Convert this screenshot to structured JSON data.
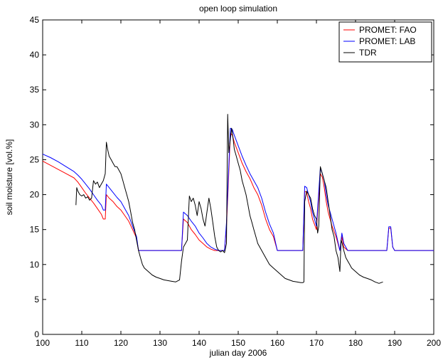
{
  "chart_data": {
    "type": "line",
    "title": "open loop simulation",
    "xlabel": "julian day 2006",
    "ylabel": "soil moisture [vol.%]",
    "xlim": [
      100,
      200
    ],
    "ylim": [
      0,
      45
    ],
    "xticks": [
      100,
      110,
      120,
      130,
      140,
      150,
      160,
      170,
      180,
      190,
      200
    ],
    "yticks": [
      0,
      5,
      10,
      15,
      20,
      25,
      30,
      35,
      40,
      45
    ],
    "grid": false,
    "legend_position": "top-right",
    "series": [
      {
        "name": "PROMET: FAO",
        "color": "#ff0000",
        "x": [
          100,
          102,
          104,
          106,
          108,
          109,
          110,
          111,
          112,
          113,
          114,
          115,
          115.5,
          116,
          116.3,
          117,
          118,
          119,
          120,
          121,
          122,
          123,
          124,
          124.5,
          125,
          130,
          135.5,
          136,
          137,
          138,
          139,
          140,
          141,
          142,
          143,
          144,
          145,
          146,
          146.5,
          147,
          147.5,
          148,
          148.5,
          149,
          150,
          151,
          152,
          153,
          154,
          155,
          156,
          157,
          158,
          159,
          160,
          161,
          166.5,
          167,
          167.5,
          168,
          168.5,
          169,
          170,
          171,
          171.5,
          172,
          172.5,
          173,
          174,
          175,
          176,
          176.5,
          177,
          178,
          179,
          180,
          185,
          188,
          188.5,
          189,
          189.5,
          190,
          195,
          200
        ],
        "y": [
          24.8,
          24.2,
          23.6,
          23.0,
          22.4,
          21.8,
          21.0,
          20.2,
          19.5,
          18.8,
          18.0,
          17.2,
          16.5,
          16.5,
          20.0,
          19.5,
          19.0,
          18.3,
          17.8,
          17.0,
          16.2,
          15.0,
          13.8,
          12.0,
          12.0,
          12.0,
          12.0,
          16.5,
          16.0,
          15.0,
          14.3,
          13.5,
          13.0,
          12.5,
          12.2,
          12.0,
          12.0,
          12.0,
          12.0,
          15.5,
          22.0,
          28.8,
          28.5,
          27.5,
          26.0,
          24.5,
          23.3,
          22.3,
          21.0,
          20.0,
          18.5,
          16.5,
          15.0,
          14.0,
          12.0,
          12.0,
          12.0,
          20.5,
          20.3,
          19.0,
          18.0,
          16.5,
          15.0,
          23.0,
          22.5,
          21.0,
          19.0,
          17.5,
          15.5,
          14.0,
          12.0,
          14.0,
          12.5,
          12.0,
          12.0,
          12.0,
          12.0,
          12.0,
          15.2,
          15.2,
          12.5,
          12.0,
          12.0,
          12.0
        ]
      },
      {
        "name": "PROMET: LAB",
        "color": "#0000ff",
        "x": [
          100,
          102,
          104,
          106,
          108,
          109,
          110,
          111,
          112,
          113,
          114,
          115,
          115.5,
          116,
          116.3,
          117,
          118,
          119,
          120,
          121,
          122,
          123,
          124,
          124.5,
          125,
          130,
          135.5,
          136,
          137,
          138,
          139,
          140,
          141,
          142,
          143,
          144,
          145,
          146,
          146.5,
          147,
          147.5,
          148,
          148.5,
          149,
          150,
          151,
          152,
          153,
          154,
          155,
          156,
          157,
          158,
          159,
          160,
          161,
          166.5,
          167,
          167.5,
          168,
          168.5,
          169,
          170,
          171,
          171.5,
          172,
          172.5,
          173,
          174,
          175,
          176,
          176.5,
          177,
          178,
          179,
          180,
          185,
          188,
          188.5,
          189,
          189.5,
          190,
          195,
          200
        ],
        "y": [
          25.8,
          25.3,
          24.7,
          24.0,
          23.3,
          22.8,
          22.2,
          21.5,
          20.8,
          20.0,
          19.2,
          18.5,
          17.8,
          17.8,
          21.5,
          21.0,
          20.3,
          19.6,
          19.0,
          18.0,
          17.0,
          15.5,
          14.0,
          12.0,
          12.0,
          12.0,
          12.0,
          17.5,
          17.0,
          16.2,
          15.5,
          14.5,
          13.8,
          13.0,
          12.5,
          12.2,
          12.0,
          12.0,
          12.0,
          16.0,
          23.0,
          29.5,
          29.3,
          28.5,
          27.0,
          25.5,
          24.2,
          23.0,
          22.0,
          21.0,
          19.5,
          17.5,
          15.8,
          14.5,
          12.0,
          12.0,
          12.0,
          21.2,
          21.0,
          20.0,
          19.0,
          17.5,
          15.5,
          23.8,
          23.0,
          22.0,
          20.0,
          18.5,
          16.5,
          14.5,
          12.0,
          14.5,
          13.0,
          12.0,
          12.0,
          12.0,
          12.0,
          12.0,
          15.4,
          15.4,
          12.5,
          12.0,
          12.0,
          12.0
        ]
      },
      {
        "name": "TDR",
        "color": "#000000",
        "x": [
          108.5,
          108.7,
          109,
          109.5,
          110,
          110.5,
          111,
          111.5,
          112,
          112.5,
          113,
          113.5,
          114,
          114.5,
          115,
          115.5,
          116,
          116.3,
          116.6,
          117,
          117.5,
          118,
          118.5,
          119,
          119.5,
          120,
          120.5,
          121,
          121.5,
          122,
          122.5,
          123,
          123.5,
          124,
          124.5,
          125,
          125.5,
          126,
          127,
          128,
          129,
          130,
          131,
          132,
          133,
          134,
          135,
          135.5,
          136,
          136.5,
          137,
          137.5,
          138,
          138.5,
          139,
          139.5,
          140,
          140.5,
          141,
          141.5,
          142,
          142.5,
          143,
          143.5,
          144,
          144.5,
          145,
          145.5,
          146,
          146.5,
          147,
          147.3,
          147.6,
          148,
          148.3,
          148.7,
          149,
          149.5,
          150,
          150.5,
          151,
          151.5,
          152,
          152.5,
          153,
          153.5,
          154,
          154.5,
          155,
          156,
          157,
          158,
          159,
          160,
          161,
          162,
          163,
          164,
          165,
          166,
          166.5,
          166.8,
          167,
          167.5,
          168,
          168.5,
          169,
          169.5,
          170,
          170.3,
          170.6,
          171,
          171.5,
          172,
          172.5,
          173,
          173.5,
          174,
          174.5,
          175,
          175.5,
          176,
          176.3,
          176.6,
          177,
          177.5,
          178,
          178.5,
          179,
          180,
          181,
          182,
          183,
          184,
          185,
          186,
          187
        ],
        "y": [
          18.5,
          21.0,
          20.5,
          20.0,
          19.8,
          20.0,
          19.5,
          19.7,
          19.2,
          19.5,
          22.0,
          21.5,
          21.8,
          21.0,
          21.5,
          22.0,
          23.0,
          27.5,
          26.5,
          25.5,
          25.0,
          24.5,
          24.0,
          24.0,
          23.5,
          23.0,
          22.0,
          21.0,
          20.0,
          19.0,
          17.5,
          16.0,
          15.0,
          13.5,
          12.0,
          11.0,
          10.0,
          9.5,
          9.0,
          8.5,
          8.2,
          8.0,
          7.8,
          7.7,
          7.6,
          7.5,
          7.8,
          10.5,
          12.5,
          13.0,
          13.5,
          19.8,
          19.0,
          19.5,
          18.5,
          17.0,
          19.0,
          18.0,
          16.5,
          15.5,
          17.5,
          19.5,
          18.0,
          16.0,
          14.0,
          12.5,
          12.0,
          11.8,
          12.0,
          11.7,
          13.0,
          31.5,
          26.0,
          28.0,
          29.5,
          28.0,
          26.5,
          25.5,
          24.5,
          23.5,
          22.0,
          21.0,
          20.0,
          18.5,
          17.0,
          16.0,
          15.0,
          14.0,
          13.0,
          12.0,
          11.0,
          10.0,
          9.5,
          9.0,
          8.5,
          8.0,
          7.8,
          7.6,
          7.5,
          7.4,
          7.4,
          7.5,
          19.0,
          20.5,
          20.0,
          19.5,
          18.0,
          17.0,
          16.5,
          14.5,
          15.5,
          24.0,
          23.0,
          22.0,
          21.0,
          19.0,
          17.0,
          15.0,
          14.0,
          12.0,
          11.0,
          9.0,
          13.5,
          13.0,
          12.0,
          11.0,
          10.5,
          10.0,
          9.5,
          9.0,
          8.5,
          8.2,
          8.0,
          7.8,
          7.5,
          7.3,
          7.5
        ]
      }
    ]
  }
}
